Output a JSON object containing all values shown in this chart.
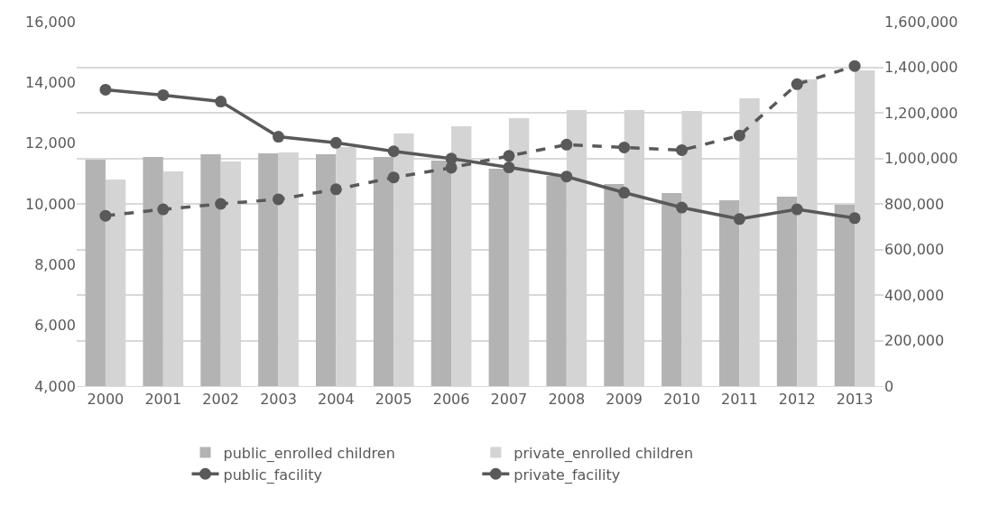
{
  "chart_data": {
    "type": "bar",
    "categories": [
      "2000",
      "2001",
      "2002",
      "2003",
      "2004",
      "2005",
      "2006",
      "2007",
      "2008",
      "2009",
      "2010",
      "2011",
      "2012",
      "2013"
    ],
    "series": [
      {
        "name": "public_enrolled children",
        "color": "#b3b3b3",
        "axis": "y2",
        "values": [
          994000,
          1006000,
          1018000,
          1022000,
          1018000,
          1006000,
          990000,
          954000,
          923000,
          887000,
          848000,
          816000,
          832000,
          796000
        ]
      },
      {
        "name": "private_enrolled children",
        "color": "#d4d4d4",
        "axis": "y2",
        "values": [
          907000,
          943000,
          986000,
          1026000,
          1050000,
          1109000,
          1141000,
          1176000,
          1212000,
          1212000,
          1208000,
          1263000,
          1347000,
          1386000
        ]
      },
      {
        "name": "public_facility",
        "type": "line",
        "color": "#595959",
        "line_style": "solid",
        "marker": "circle",
        "values": [
          13760,
          13580,
          13370,
          12210,
          12010,
          11730,
          11490,
          11200,
          10900,
          10370,
          9880,
          9500,
          9820,
          9530
        ]
      },
      {
        "name": "private_facility",
        "type": "line",
        "color": "#595959",
        "line_style": "dashed",
        "marker": "circle",
        "values": [
          9610,
          9820,
          10000,
          10150,
          10480,
          10870,
          11190,
          11580,
          11950,
          11860,
          11770,
          12250,
          13940,
          14540
        ]
      }
    ],
    "ylim": [
      4000,
      16000
    ],
    "yticks": [
      {
        "value": 4000,
        "label": "4,000"
      },
      {
        "value": 6000,
        "label": "6,000"
      },
      {
        "value": 8000,
        "label": "8,000"
      },
      {
        "value": 10000,
        "label": "10,000"
      },
      {
        "value": 12000,
        "label": "12,000"
      },
      {
        "value": 14000,
        "label": "14,000"
      },
      {
        "value": 16000,
        "label": "16,000"
      }
    ],
    "y2lim": [
      0,
      1600000
    ],
    "y2ticks": [
      0,
      {
        "value": 200000,
        "label": "200,000"
      },
      {
        "value": 400000,
        "label": "400,000"
      },
      {
        "value": 600000,
        "label": "600,000"
      },
      {
        "value": 800000,
        "label": "800,000"
      },
      {
        "value": 1000000,
        "label": "1,000,000"
      },
      {
        "value": 1200000,
        "label": "1,200,000"
      },
      {
        "value": 1400000,
        "label": "1,400,000"
      },
      {
        "value": 1600000,
        "label": "1,600,000"
      }
    ],
    "grid": "y",
    "legend": "bottom"
  }
}
